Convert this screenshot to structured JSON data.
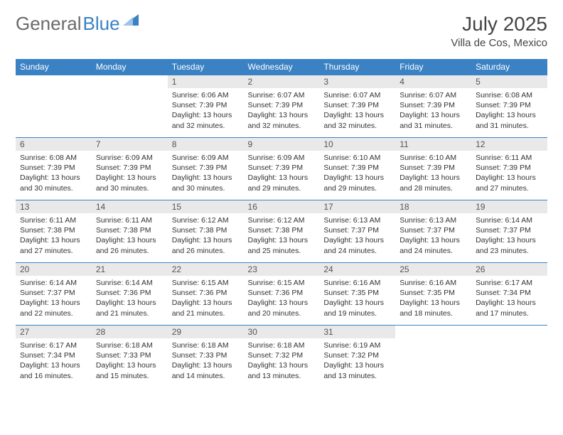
{
  "brand": {
    "part1": "General",
    "part2": "Blue",
    "icon_color": "#3a82c4"
  },
  "title": {
    "month": "July 2025",
    "location": "Villa de Cos, Mexico"
  },
  "colors": {
    "header_bg": "#3a82c4",
    "header_fg": "#ffffff",
    "daynum_bg": "#e9e9e9",
    "row_border": "#3a82c4",
    "text": "#333333"
  },
  "weekdays": [
    "Sunday",
    "Monday",
    "Tuesday",
    "Wednesday",
    "Thursday",
    "Friday",
    "Saturday"
  ],
  "lead_empty": 2,
  "days": [
    {
      "n": 1,
      "sunrise": "6:06 AM",
      "sunset": "7:39 PM",
      "daylight": "13 hours and 32 minutes."
    },
    {
      "n": 2,
      "sunrise": "6:07 AM",
      "sunset": "7:39 PM",
      "daylight": "13 hours and 32 minutes."
    },
    {
      "n": 3,
      "sunrise": "6:07 AM",
      "sunset": "7:39 PM",
      "daylight": "13 hours and 32 minutes."
    },
    {
      "n": 4,
      "sunrise": "6:07 AM",
      "sunset": "7:39 PM",
      "daylight": "13 hours and 31 minutes."
    },
    {
      "n": 5,
      "sunrise": "6:08 AM",
      "sunset": "7:39 PM",
      "daylight": "13 hours and 31 minutes."
    },
    {
      "n": 6,
      "sunrise": "6:08 AM",
      "sunset": "7:39 PM",
      "daylight": "13 hours and 30 minutes."
    },
    {
      "n": 7,
      "sunrise": "6:09 AM",
      "sunset": "7:39 PM",
      "daylight": "13 hours and 30 minutes."
    },
    {
      "n": 8,
      "sunrise": "6:09 AM",
      "sunset": "7:39 PM",
      "daylight": "13 hours and 30 minutes."
    },
    {
      "n": 9,
      "sunrise": "6:09 AM",
      "sunset": "7:39 PM",
      "daylight": "13 hours and 29 minutes."
    },
    {
      "n": 10,
      "sunrise": "6:10 AM",
      "sunset": "7:39 PM",
      "daylight": "13 hours and 29 minutes."
    },
    {
      "n": 11,
      "sunrise": "6:10 AM",
      "sunset": "7:39 PM",
      "daylight": "13 hours and 28 minutes."
    },
    {
      "n": 12,
      "sunrise": "6:11 AM",
      "sunset": "7:39 PM",
      "daylight": "13 hours and 27 minutes."
    },
    {
      "n": 13,
      "sunrise": "6:11 AM",
      "sunset": "7:38 PM",
      "daylight": "13 hours and 27 minutes."
    },
    {
      "n": 14,
      "sunrise": "6:11 AM",
      "sunset": "7:38 PM",
      "daylight": "13 hours and 26 minutes."
    },
    {
      "n": 15,
      "sunrise": "6:12 AM",
      "sunset": "7:38 PM",
      "daylight": "13 hours and 26 minutes."
    },
    {
      "n": 16,
      "sunrise": "6:12 AM",
      "sunset": "7:38 PM",
      "daylight": "13 hours and 25 minutes."
    },
    {
      "n": 17,
      "sunrise": "6:13 AM",
      "sunset": "7:37 PM",
      "daylight": "13 hours and 24 minutes."
    },
    {
      "n": 18,
      "sunrise": "6:13 AM",
      "sunset": "7:37 PM",
      "daylight": "13 hours and 24 minutes."
    },
    {
      "n": 19,
      "sunrise": "6:14 AM",
      "sunset": "7:37 PM",
      "daylight": "13 hours and 23 minutes."
    },
    {
      "n": 20,
      "sunrise": "6:14 AM",
      "sunset": "7:37 PM",
      "daylight": "13 hours and 22 minutes."
    },
    {
      "n": 21,
      "sunrise": "6:14 AM",
      "sunset": "7:36 PM",
      "daylight": "13 hours and 21 minutes."
    },
    {
      "n": 22,
      "sunrise": "6:15 AM",
      "sunset": "7:36 PM",
      "daylight": "13 hours and 21 minutes."
    },
    {
      "n": 23,
      "sunrise": "6:15 AM",
      "sunset": "7:36 PM",
      "daylight": "13 hours and 20 minutes."
    },
    {
      "n": 24,
      "sunrise": "6:16 AM",
      "sunset": "7:35 PM",
      "daylight": "13 hours and 19 minutes."
    },
    {
      "n": 25,
      "sunrise": "6:16 AM",
      "sunset": "7:35 PM",
      "daylight": "13 hours and 18 minutes."
    },
    {
      "n": 26,
      "sunrise": "6:17 AM",
      "sunset": "7:34 PM",
      "daylight": "13 hours and 17 minutes."
    },
    {
      "n": 27,
      "sunrise": "6:17 AM",
      "sunset": "7:34 PM",
      "daylight": "13 hours and 16 minutes."
    },
    {
      "n": 28,
      "sunrise": "6:18 AM",
      "sunset": "7:33 PM",
      "daylight": "13 hours and 15 minutes."
    },
    {
      "n": 29,
      "sunrise": "6:18 AM",
      "sunset": "7:33 PM",
      "daylight": "13 hours and 14 minutes."
    },
    {
      "n": 30,
      "sunrise": "6:18 AM",
      "sunset": "7:32 PM",
      "daylight": "13 hours and 13 minutes."
    },
    {
      "n": 31,
      "sunrise": "6:19 AM",
      "sunset": "7:32 PM",
      "daylight": "13 hours and 13 minutes."
    }
  ],
  "labels": {
    "sunrise": "Sunrise: ",
    "sunset": "Sunset: ",
    "daylight": "Daylight: "
  }
}
